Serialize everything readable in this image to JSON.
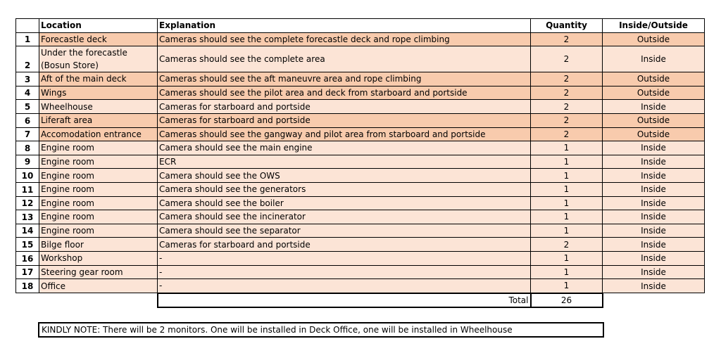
{
  "table": {
    "headers": [
      "Location",
      "Explanation",
      "Quantity",
      "Inside/Outside"
    ],
    "rows": [
      {
        "no": 1,
        "location": "Forecastle deck",
        "explanation": "Cameras should see the complete forecastle deck and rope climbing",
        "quantity": 2,
        "placement": "Outside",
        "color": "#f8cbad"
      },
      {
        "no": 2,
        "location": "Under the forecastle\n(Bosun Store)",
        "explanation": "Cameras should see the complete area",
        "quantity": 2,
        "placement": "Inside",
        "color": "#fce4d6"
      },
      {
        "no": 3,
        "location": "Aft of the main deck",
        "explanation": "Cameras should see the aft maneuvre area and rope climbing",
        "quantity": 2,
        "placement": "Outside",
        "color": "#f8cbad"
      },
      {
        "no": 4,
        "location": "Wings",
        "explanation": "Cameras should see the pilot area and deck from starboard and portside",
        "quantity": 2,
        "placement": "Outside",
        "color": "#f8cbad"
      },
      {
        "no": 5,
        "location": "Wheelhouse",
        "explanation": "Cameras for starboard and portside",
        "quantity": 2,
        "placement": "Inside",
        "color": "#fce4d6"
      },
      {
        "no": 6,
        "location": "Liferaft area",
        "explanation": "Cameras for starboard and portside",
        "quantity": 2,
        "placement": "Outside",
        "color": "#f8cbad"
      },
      {
        "no": 7,
        "location": "Accomodation entrance",
        "explanation": "Cameras should see the gangway and pilot area from starboard and portside",
        "quantity": 2,
        "placement": "Outside",
        "color": "#f8cbad"
      },
      {
        "no": 8,
        "location": "Engine room",
        "explanation": "Camera should see the main engine",
        "quantity": 1,
        "placement": "Inside",
        "color": "#fce4d6"
      },
      {
        "no": 9,
        "location": "Engine room",
        "explanation": "ECR",
        "quantity": 1,
        "placement": "Inside",
        "color": "#fce4d6"
      },
      {
        "no": 10,
        "location": "Engine room",
        "explanation": "Camera should see the OWS",
        "quantity": 1,
        "placement": "Inside",
        "color": "#fce4d6"
      },
      {
        "no": 11,
        "location": "Engine room",
        "explanation": "Camera should see the generators",
        "quantity": 1,
        "placement": "Inside",
        "color": "#fce4d6"
      },
      {
        "no": 12,
        "location": "Engine room",
        "explanation": "Camera should see the boiler",
        "quantity": 1,
        "placement": "Inside",
        "color": "#fce4d6"
      },
      {
        "no": 13,
        "location": "Engine room",
        "explanation": "Camera should see the incinerator",
        "quantity": 1,
        "placement": "Inside",
        "color": "#fce4d6"
      },
      {
        "no": 14,
        "location": "Engine room",
        "explanation": "Camera should see the separator",
        "quantity": 1,
        "placement": "Inside",
        "color": "#fce4d6"
      },
      {
        "no": 15,
        "location": "Bilge floor",
        "explanation": "Cameras for starboard and portside",
        "quantity": 2,
        "placement": "Inside",
        "color": "#fce4d6"
      },
      {
        "no": 16,
        "location": "Workshop",
        "explanation": "-",
        "quantity": 1,
        "placement": "Inside",
        "color": "#fce4d6"
      },
      {
        "no": 17,
        "location": "Steering gear room",
        "explanation": "-",
        "quantity": 1,
        "placement": "Inside",
        "color": "#fce4d6"
      },
      {
        "no": 18,
        "location": "Office",
        "explanation": "-",
        "quantity": 1,
        "placement": "Inside",
        "color": "#fce4d6"
      }
    ],
    "total_label": "Total",
    "total": 26
  },
  "note": "KINDLY NOTE: There will be 2 monitors. One will be installed in Deck Office, one will be installed in Wheelhouse"
}
